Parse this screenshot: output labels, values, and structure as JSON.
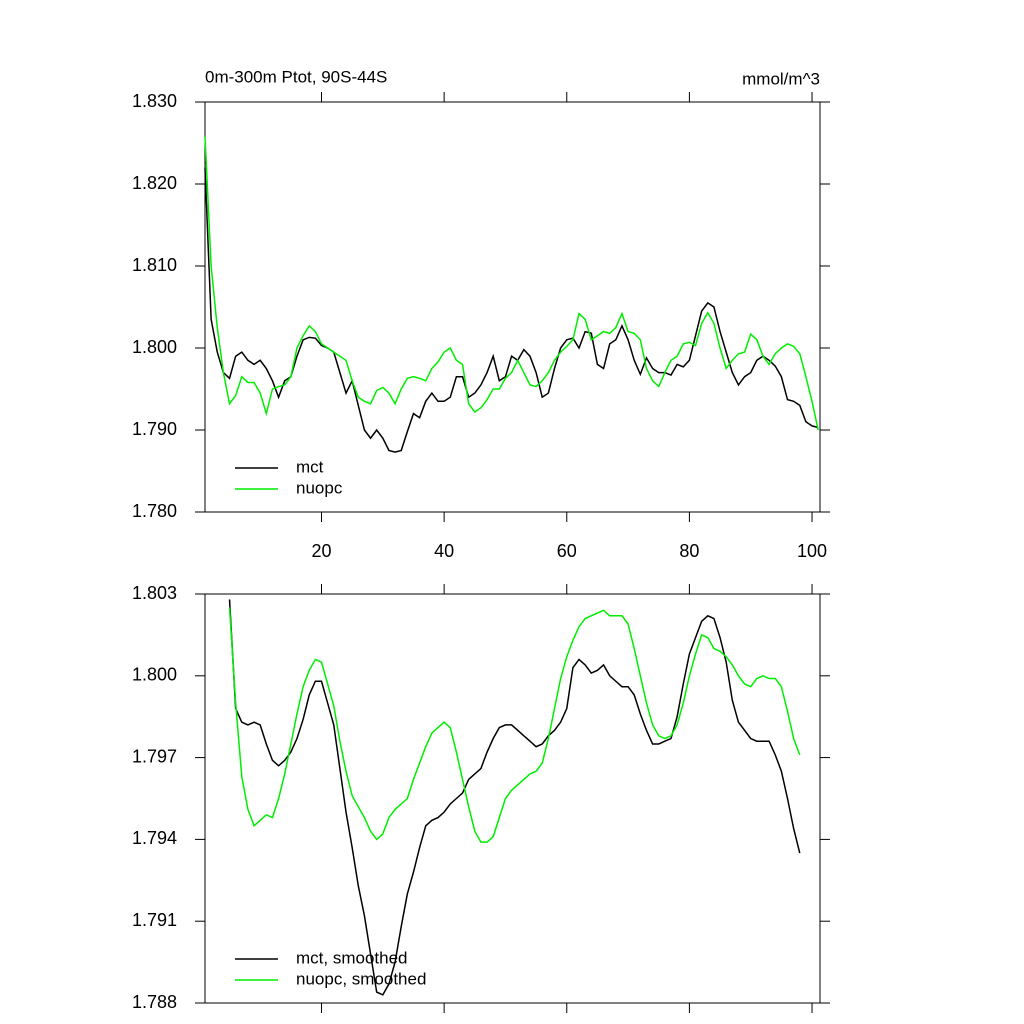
{
  "chart_data": [
    {
      "type": "line",
      "title": "0m-300m Ptot, 90S-44S",
      "title_right": "mmol/m^3",
      "x": [
        1,
        2,
        3,
        4,
        5,
        6,
        7,
        8,
        9,
        10,
        11,
        12,
        13,
        14,
        15,
        16,
        17,
        18,
        19,
        20,
        21,
        22,
        23,
        24,
        25,
        26,
        27,
        28,
        29,
        30,
        31,
        32,
        33,
        34,
        35,
        36,
        37,
        38,
        39,
        40,
        41,
        42,
        43,
        44,
        45,
        46,
        47,
        48,
        49,
        50,
        51,
        52,
        53,
        54,
        55,
        56,
        57,
        58,
        59,
        60,
        61,
        62,
        63,
        64,
        65,
        66,
        67,
        68,
        69,
        70,
        71,
        72,
        73,
        74,
        75,
        76,
        77,
        78,
        79,
        80,
        81,
        82,
        83,
        84,
        85,
        86,
        87,
        88,
        89,
        90,
        91,
        92,
        93,
        94,
        95,
        96,
        97,
        98,
        99,
        100,
        101
      ],
      "series": [
        {
          "name": "mct",
          "color": "#000000",
          "values": [
            1.822,
            1.8035,
            1.7995,
            1.797,
            1.7963,
            1.799,
            1.7995,
            1.7985,
            1.798,
            1.7985,
            1.7975,
            1.796,
            1.794,
            1.796,
            1.7965,
            1.799,
            1.801,
            1.8013,
            1.8012,
            1.8003,
            1.8,
            1.7995,
            1.797,
            1.7945,
            1.796,
            1.793,
            1.79,
            1.789,
            1.79,
            1.789,
            1.7875,
            1.7873,
            1.7875,
            1.7898,
            1.792,
            1.7915,
            1.7935,
            1.7945,
            1.7935,
            1.7935,
            1.794,
            1.7965,
            1.7965,
            1.794,
            1.7945,
            1.7955,
            1.797,
            1.799,
            1.796,
            1.7965,
            1.799,
            1.7985,
            1.7998,
            1.799,
            1.797,
            1.794,
            1.7945,
            1.7975,
            1.8,
            1.801,
            1.8012,
            1.8,
            1.802,
            1.8018,
            1.798,
            1.7975,
            1.8005,
            1.801,
            1.8027,
            1.801,
            1.7985,
            1.7968,
            1.7988,
            1.7975,
            1.797,
            1.797,
            1.7967,
            1.798,
            1.7977,
            1.7985,
            1.8015,
            1.8045,
            1.8055,
            1.805,
            1.802,
            1.7995,
            1.797,
            1.7955,
            1.7965,
            1.797,
            1.7985,
            1.799,
            1.7985,
            1.7978,
            1.7965,
            1.7937,
            1.7935,
            1.793,
            1.791,
            1.7905,
            1.7903
          ]
        },
        {
          "name": "nuopc",
          "color": "#00ee00",
          "values": [
            1.8258,
            1.81,
            1.8025,
            1.797,
            1.7932,
            1.7942,
            1.7965,
            1.7958,
            1.7958,
            1.7945,
            1.792,
            1.795,
            1.7953,
            1.7955,
            1.7965,
            1.8,
            1.8015,
            1.8027,
            1.802,
            1.8005,
            1.8,
            1.7995,
            1.799,
            1.7985,
            1.796,
            1.794,
            1.7935,
            1.7932,
            1.7948,
            1.7952,
            1.7945,
            1.7932,
            1.795,
            1.7963,
            1.7965,
            1.7963,
            1.796,
            1.7975,
            1.7983,
            1.7995,
            1.8,
            1.7985,
            1.798,
            1.7932,
            1.7922,
            1.7927,
            1.7937,
            1.795,
            1.795,
            1.7963,
            1.797,
            1.7985,
            1.797,
            1.7955,
            1.7953,
            1.796,
            1.797,
            1.7985,
            1.7995,
            1.8002,
            1.801,
            1.8042,
            1.8035,
            1.801,
            1.8015,
            1.802,
            1.8018,
            1.8025,
            1.8042,
            1.802,
            1.8018,
            1.801,
            1.7975,
            1.796,
            1.7953,
            1.797,
            1.7985,
            1.799,
            1.8005,
            1.8007,
            1.8003,
            1.803,
            1.8043,
            1.803,
            1.8,
            1.7975,
            1.7985,
            1.7993,
            1.7995,
            1.8017,
            1.801,
            1.799,
            1.798,
            1.7993,
            1.8,
            1.8005,
            1.8002,
            1.7993,
            1.7965,
            1.7935,
            1.79
          ]
        }
      ],
      "xlim": [
        1,
        101.3
      ],
      "xticks": [
        20,
        40,
        60,
        80,
        100
      ],
      "xtick_labels": true,
      "ylim": [
        1.78,
        1.83
      ],
      "yticks": [
        {
          "value": 1.78,
          "label": "1.780"
        },
        {
          "value": 1.79,
          "label": "1.790"
        },
        {
          "value": 1.8,
          "label": "1.800"
        },
        {
          "value": 1.81,
          "label": "1.810"
        },
        {
          "value": 1.82,
          "label": "1.820"
        },
        {
          "value": 1.83,
          "label": "1.830"
        }
      ],
      "legend": "lower left"
    },
    {
      "type": "line",
      "x": [
        5,
        6,
        7,
        8,
        9,
        10,
        11,
        12,
        13,
        14,
        15,
        16,
        17,
        18,
        19,
        20,
        21,
        22,
        23,
        24,
        25,
        26,
        27,
        28,
        29,
        30,
        31,
        32,
        33,
        34,
        35,
        36,
        37,
        38,
        39,
        40,
        41,
        42,
        43,
        44,
        45,
        46,
        47,
        48,
        49,
        50,
        51,
        52,
        53,
        54,
        55,
        56,
        57,
        58,
        59,
        60,
        61,
        62,
        63,
        64,
        65,
        66,
        67,
        68,
        69,
        70,
        71,
        72,
        73,
        74,
        75,
        76,
        77,
        78,
        79,
        80,
        81,
        82,
        83,
        84,
        85,
        86,
        87,
        88,
        89,
        90,
        91,
        92,
        93,
        94,
        95,
        96,
        97,
        98
      ],
      "series": [
        {
          "name": "mct, smoothed",
          "color": "#000000",
          "values": [
            1.8028,
            1.7988,
            1.7983,
            1.7982,
            1.7983,
            1.7982,
            1.7975,
            1.7969,
            1.7967,
            1.7969,
            1.7972,
            1.7977,
            1.7984,
            1.7993,
            1.7998,
            1.7998,
            1.799,
            1.7982,
            1.7966,
            1.795,
            1.7937,
            1.7923,
            1.7912,
            1.7898,
            1.7884,
            1.7883,
            1.7887,
            1.7895,
            1.7908,
            1.792,
            1.7928,
            1.7937,
            1.7945,
            1.7947,
            1.7948,
            1.795,
            1.7953,
            1.7955,
            1.7957,
            1.7962,
            1.7964,
            1.7966,
            1.7972,
            1.7977,
            1.7981,
            1.7982,
            1.7982,
            1.798,
            1.7978,
            1.7976,
            1.7974,
            1.7975,
            1.7978,
            1.798,
            1.7983,
            1.7988,
            1.8003,
            1.8006,
            1.8004,
            1.8001,
            1.8002,
            1.8004,
            1.8,
            1.7998,
            1.7996,
            1.7996,
            1.7993,
            1.7986,
            1.798,
            1.7975,
            1.7975,
            1.7976,
            1.7977,
            1.7985,
            1.7997,
            1.8008,
            1.8014,
            1.802,
            1.8022,
            1.8021,
            1.8014,
            1.8005,
            1.7991,
            1.7983,
            1.798,
            1.7977,
            1.7976,
            1.7976,
            1.7976,
            1.7971,
            1.7965,
            1.7955,
            1.7944,
            1.7935
          ]
        },
        {
          "name": "nuopc, smoothed",
          "color": "#00ee00",
          "values": [
            1.8025,
            1.799,
            1.7963,
            1.7951,
            1.7945,
            1.7947,
            1.7949,
            1.7948,
            1.7955,
            1.7964,
            1.7975,
            1.7986,
            1.7996,
            1.8002,
            1.8006,
            1.8005,
            1.7997,
            1.7989,
            1.7976,
            1.7965,
            1.7956,
            1.7952,
            1.7948,
            1.7943,
            1.794,
            1.7942,
            1.7948,
            1.7951,
            1.7953,
            1.7955,
            1.7962,
            1.7968,
            1.7974,
            1.7979,
            1.7981,
            1.7983,
            1.7981,
            1.7972,
            1.7962,
            1.7952,
            1.7943,
            1.7939,
            1.7939,
            1.7941,
            1.7948,
            1.7955,
            1.7958,
            1.796,
            1.7962,
            1.7964,
            1.7965,
            1.7968,
            1.7977,
            1.7988,
            1.7999,
            1.8007,
            1.8013,
            1.8018,
            1.8021,
            1.8022,
            1.8023,
            1.8024,
            1.8022,
            1.8022,
            1.8022,
            1.8019,
            1.801,
            1.8,
            1.799,
            1.7982,
            1.7978,
            1.7977,
            1.7978,
            1.7982,
            1.799,
            1.8,
            1.8008,
            1.8015,
            1.8014,
            1.801,
            1.8009,
            1.8007,
            1.8004,
            1.8,
            1.7997,
            1.7996,
            1.7999,
            1.8,
            1.7999,
            1.7999,
            1.7996,
            1.7987,
            1.7977,
            1.7971
          ]
        }
      ],
      "xlim": [
        1,
        101.3
      ],
      "xticks": [
        20,
        40,
        60,
        80,
        100
      ],
      "xtick_labels": false,
      "ylim": [
        1.788,
        1.803
      ],
      "yticks": [
        1.788,
        1.791,
        1.794,
        1.797,
        {
          "value": 1.8,
          "label": "1.800"
        },
        1.803
      ],
      "legend": "lower left"
    }
  ]
}
